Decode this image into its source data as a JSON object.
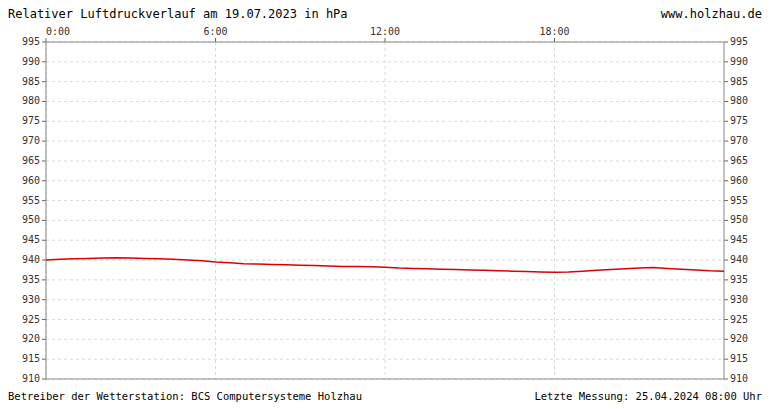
{
  "chart_data": {
    "type": "line",
    "title": "Relativer Luftdruckverlauf am 19.07.2023 in hPa",
    "annotations": [
      "www.holzhau.de",
      "Betreiber der Wetterstation: BCS Computersysteme Holzhau",
      "Letzte Messung: 25.04.2024 08:00 Uhr"
    ],
    "x": [
      0,
      30,
      60,
      90,
      120,
      150,
      180,
      210,
      240,
      270,
      300,
      330,
      360,
      390,
      420,
      450,
      480,
      510,
      540,
      570,
      600,
      630,
      660,
      690,
      720,
      750,
      780,
      810,
      840,
      870,
      900,
      930,
      960,
      990,
      1020,
      1050,
      1080,
      1110,
      1140,
      1170,
      1200,
      1230,
      1260,
      1290,
      1320,
      1350,
      1380,
      1410,
      1440
    ],
    "series": [
      {
        "color": "#dd0000",
        "values": [
          940.0,
          940.2,
          940.3,
          940.4,
          940.5,
          940.6,
          940.5,
          940.4,
          940.3,
          940.2,
          940.0,
          939.8,
          939.5,
          939.3,
          939.1,
          939.0,
          938.9,
          938.8,
          938.7,
          938.6,
          938.5,
          938.4,
          938.35,
          938.3,
          938.2,
          938.0,
          937.9,
          937.8,
          937.7,
          937.6,
          937.5,
          937.4,
          937.3,
          937.2,
          937.1,
          937.0,
          936.9,
          937.0,
          937.2,
          937.4,
          937.6,
          937.8,
          938.0,
          938.1,
          937.9,
          937.7,
          937.5,
          937.3,
          937.2
        ]
      }
    ],
    "xlim": [
      0,
      1440
    ],
    "xticks": [
      {
        "value": 0,
        "label": "0:00"
      },
      {
        "value": 360,
        "label": "6:00"
      },
      {
        "value": 720,
        "label": "12:00"
      },
      {
        "value": 1080,
        "label": "18:00"
      }
    ],
    "ylim": [
      910,
      995
    ],
    "yticks": [
      910,
      915,
      920,
      925,
      930,
      935,
      940,
      945,
      950,
      955,
      960,
      965,
      970,
      975,
      980,
      985,
      990,
      995
    ],
    "grid": true
  }
}
